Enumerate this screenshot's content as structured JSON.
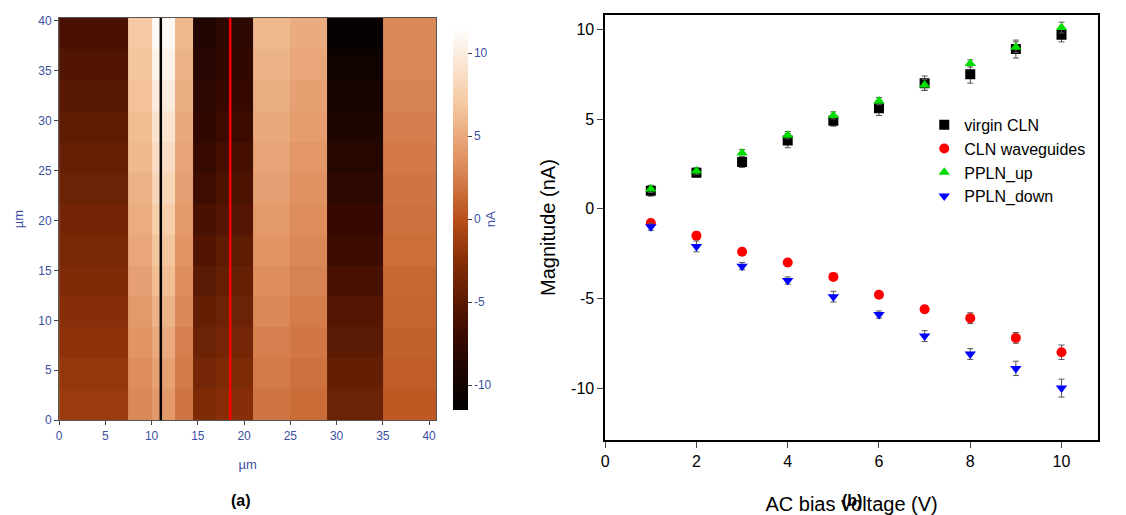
{
  "chart_data": [
    {
      "type": "heatmap",
      "panel": "(a)",
      "x_label": "µm",
      "y_label": "µm",
      "colorbar_title": "nA",
      "xlim": [
        0,
        40.8
      ],
      "ylim": [
        0,
        40.3
      ],
      "xticks": [
        0,
        5,
        10,
        15,
        20,
        25,
        30,
        35,
        40
      ],
      "yticks": [
        0,
        5,
        10,
        15,
        20,
        25,
        30,
        35,
        40
      ],
      "x_edges": [
        0,
        7.5,
        10,
        12.5,
        14.5,
        17,
        21,
        25,
        29,
        35,
        40.8
      ],
      "y_edges": [
        0,
        3.1,
        6.2,
        9.3,
        12.4,
        15.5,
        18.6,
        21.7,
        24.8,
        27.9,
        31.0,
        34.1,
        37.2,
        40.3
      ],
      "cells": [
        [
          -1.5,
          3.0,
          4.0,
          2.0,
          -3.0,
          -2.5,
          2.0,
          1.5,
          -4.0,
          0.5
        ],
        [
          -1.8,
          3.3,
          4.5,
          2.3,
          -3.5,
          -3.0,
          2.3,
          1.8,
          -4.5,
          0.7
        ],
        [
          -2.2,
          3.7,
          5.0,
          2.6,
          -4.0,
          -3.5,
          2.6,
          2.1,
          -5.0,
          0.9
        ],
        [
          -2.5,
          4.0,
          5.6,
          3.0,
          -4.5,
          -4.0,
          3.0,
          2.4,
          -5.5,
          1.1
        ],
        [
          -2.9,
          4.4,
          6.2,
          3.3,
          -5.0,
          -4.4,
          3.3,
          2.7,
          -6.1,
          1.3
        ],
        [
          -3.3,
          4.8,
          6.8,
          3.7,
          -5.6,
          -4.9,
          3.7,
          3.0,
          -6.7,
          1.6
        ],
        [
          -3.6,
          5.2,
          7.4,
          4.0,
          -6.1,
          -5.4,
          4.0,
          3.3,
          -7.3,
          1.8
        ],
        [
          -4.0,
          5.5,
          8.0,
          4.4,
          -6.6,
          -5.9,
          4.4,
          3.6,
          -7.9,
          2.0
        ],
        [
          -4.4,
          5.9,
          8.6,
          4.7,
          -7.1,
          -6.3,
          4.7,
          3.9,
          -8.5,
          2.2
        ],
        [
          -4.8,
          6.2,
          9.2,
          5.0,
          -7.6,
          -6.8,
          5.0,
          4.2,
          -9.1,
          2.5
        ],
        [
          -5.2,
          6.5,
          9.8,
          5.3,
          -8.1,
          -7.2,
          5.3,
          4.5,
          -9.7,
          2.7
        ],
        [
          -5.6,
          6.8,
          10.4,
          5.6,
          -8.6,
          -7.6,
          5.6,
          4.8,
          -10.3,
          2.9
        ],
        [
          -6.0,
          7.1,
          11.0,
          5.9,
          -9.0,
          -8.0,
          5.9,
          5.1,
          -11.0,
          3.0
        ]
      ],
      "colorbar_range": [
        -11.5,
        11.5
      ],
      "colorbar_ticks": [
        -10,
        -5,
        0,
        5,
        10
      ],
      "profile_lines": [
        {
          "x": 11,
          "color": "#000000"
        },
        {
          "x": 18.5,
          "color": "#ff0000"
        }
      ]
    },
    {
      "type": "scatter",
      "panel": "(b)",
      "x_label": "AC bias voltage (V)",
      "y_label": "Magnitude (nA)",
      "xlim": [
        0,
        10.8
      ],
      "ylim": [
        -12.9,
        10.8
      ],
      "xticks": [
        0,
        2,
        4,
        6,
        8,
        10
      ],
      "yticks": [
        -10,
        -5,
        0,
        5,
        10
      ],
      "legend": "right",
      "x": [
        1,
        2,
        3,
        4,
        5,
        6,
        7,
        8,
        9,
        10
      ],
      "series": [
        {
          "name": "virgin CLN",
          "color": "#000000",
          "marker": "square",
          "values": [
            1.0,
            2.0,
            2.6,
            3.8,
            4.9,
            5.6,
            7.0,
            7.5,
            8.9,
            9.7
          ],
          "errors": [
            0.3,
            0.2,
            0.3,
            0.4,
            0.3,
            0.4,
            0.4,
            0.5,
            0.5,
            0.4
          ]
        },
        {
          "name": "CLN waveguides",
          "color": "#ff0000",
          "marker": "circle",
          "values": [
            -0.8,
            -1.5,
            -2.4,
            -3.0,
            -3.8,
            -4.8,
            -5.6,
            -6.1,
            -7.2,
            -8.0
          ],
          "errors": [
            0.2,
            0.2,
            0.2,
            0.2,
            0.2,
            0.2,
            0.2,
            0.3,
            0.3,
            0.4
          ]
        },
        {
          "name": "PPLN_up",
          "color": "#00dd00",
          "marker": "triangle-up",
          "values": [
            1.1,
            2.1,
            3.1,
            4.1,
            5.2,
            6.0,
            6.9,
            8.1,
            9.0,
            10.1
          ],
          "errors": [
            0.2,
            0.2,
            0.2,
            0.2,
            0.2,
            0.2,
            0.3,
            0.2,
            0.3,
            0.3
          ]
        },
        {
          "name": "PPLN_down",
          "color": "#0000ff",
          "marker": "triangle-down",
          "values": [
            -1.0,
            -2.1,
            -3.2,
            -4.0,
            -4.9,
            -5.9,
            -7.1,
            -8.1,
            -8.9,
            -10.0
          ],
          "errors": [
            0.2,
            0.3,
            0.2,
            0.2,
            0.3,
            0.2,
            0.3,
            0.3,
            0.4,
            0.5
          ]
        }
      ]
    }
  ]
}
